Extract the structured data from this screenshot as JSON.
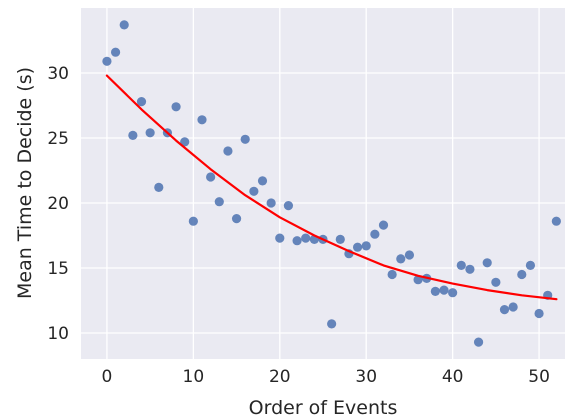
{
  "chart_data": {
    "type": "scatter",
    "title": "",
    "xlabel": "Order of Events",
    "ylabel": "Mean Time to Decide (s)",
    "xlim": [
      -3,
      53
    ],
    "ylim": [
      8,
      35
    ],
    "xticks": [
      0,
      10,
      20,
      30,
      40,
      50
    ],
    "yticks": [
      10,
      15,
      20,
      25,
      30
    ],
    "grid": true,
    "colors": {
      "background": "#eaeaf2",
      "grid": "#ffffff",
      "points": "#4c72b0",
      "fit_line": "#ff0000"
    },
    "series": [
      {
        "x": [
          0,
          1,
          2,
          3,
          4,
          5,
          6,
          7,
          8,
          9,
          10,
          11,
          12,
          13,
          14,
          15,
          16,
          17,
          18,
          19,
          20,
          21,
          22,
          23,
          24,
          25,
          26,
          27,
          28,
          29,
          30,
          31,
          32,
          33,
          34,
          35,
          36,
          37,
          38,
          39,
          40,
          41,
          42,
          43,
          44,
          45,
          46,
          47,
          48,
          49,
          50,
          51,
          52
        ],
        "y": [
          30.9,
          31.6,
          33.7,
          25.2,
          27.8,
          25.4,
          21.2,
          25.4,
          27.4,
          24.7,
          18.6,
          26.4,
          22.0,
          20.1,
          24.0,
          18.8,
          24.9,
          20.9,
          21.7,
          20.0,
          17.3,
          19.8,
          17.1,
          17.3,
          17.2,
          17.2,
          10.7,
          17.2,
          16.1,
          16.6,
          16.7,
          17.6,
          18.3,
          14.5,
          15.7,
          16.0,
          14.1,
          14.2,
          13.2,
          13.3,
          13.1,
          15.2,
          14.9,
          9.3,
          15.4,
          13.9,
          11.8,
          12.0,
          14.5,
          15.2,
          11.5,
          12.9,
          18.6
        ]
      },
      {
        "type": "line",
        "x": [
          0,
          4,
          8,
          12,
          16,
          20,
          24,
          28,
          32,
          36,
          40,
          44,
          48,
          52
        ],
        "y": [
          29.8,
          27.2,
          24.8,
          22.6,
          20.6,
          18.9,
          17.5,
          16.3,
          15.2,
          14.4,
          13.8,
          13.3,
          12.9,
          12.6
        ]
      }
    ]
  }
}
